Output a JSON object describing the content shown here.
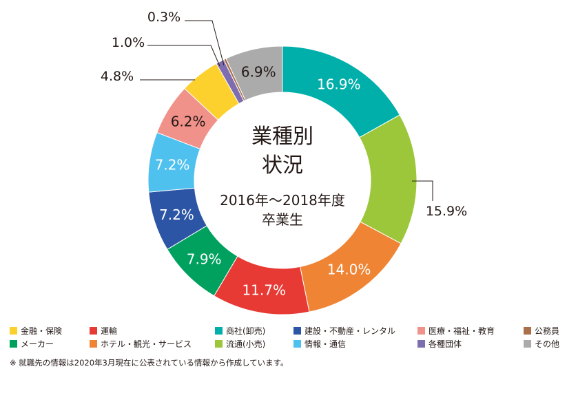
{
  "chart_data": {
    "type": "pie",
    "donut": true,
    "center_title": [
      "業種別",
      "状況"
    ],
    "center_subtitle": [
      "2016年〜2018年度",
      "卒業生"
    ],
    "slices": [
      {
        "label": "商社(卸売)",
        "value": 16.9,
        "display": "16.9%",
        "color": "#00AFAA"
      },
      {
        "label": "流通(小売)",
        "value": 15.9,
        "display": "15.9%",
        "color": "#9DC73B"
      },
      {
        "label": "ホテル・観光・サービス",
        "value": 14.0,
        "display": "14.0%",
        "color": "#EF8534"
      },
      {
        "label": "運輸",
        "value": 11.7,
        "display": "11.7%",
        "color": "#E73A35"
      },
      {
        "label": "メーカー",
        "value": 7.9,
        "display": "7.9%",
        "color": "#00A15F"
      },
      {
        "label": "建設・不動産・レンタル",
        "value": 7.2,
        "display": "7.2%",
        "color": "#2C55A5"
      },
      {
        "label": "情報・通信",
        "value": 7.2,
        "display": "7.2%",
        "color": "#4FC1EF"
      },
      {
        "label": "医療・福祉・教育",
        "value": 6.2,
        "display": "6.2%",
        "color": "#F0918A"
      },
      {
        "label": "金融・保険",
        "value": 4.8,
        "display": "4.8%",
        "color": "#FDD12D"
      },
      {
        "label": "各種団体",
        "value": 1.0,
        "display": "1.0%",
        "color": "#7E6EB1"
      },
      {
        "label": "公務員",
        "value": 0.3,
        "display": "0.3%",
        "color": "#A9704A"
      },
      {
        "label": "その他",
        "value": 6.9,
        "display": "6.9%",
        "color": "#ABABAB"
      }
    ],
    "legend_rows": [
      [
        "金融・保険",
        "運輸",
        "商社(卸売)",
        "建設・不動産・レンタル",
        "医療・福祉・教育",
        "公務員"
      ],
      [
        "メーカー",
        "ホテル・観光・サービス",
        "流通(小売)",
        "情報・通信",
        "各種団体",
        "その他"
      ]
    ]
  },
  "footnote": "※ 就職先の情報は2020年3月現在に公表されている情報から作成しています。"
}
